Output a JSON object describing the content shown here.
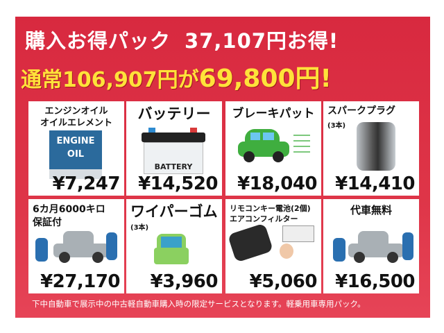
{
  "header": {
    "title": "購入お得パック",
    "savings": "37,107円お得!",
    "regular_prefix": "通常",
    "regular_price": "106,907円が",
    "pack_price": "69,800円!"
  },
  "items": [
    {
      "label": "エンジンオイル\nオイルエレメント",
      "price": "¥7,247",
      "icon": "engine-oil-can-icon",
      "icon_text": "ENGINE OIL"
    },
    {
      "label": "バッテリー",
      "price": "¥14,520",
      "icon": "battery-icon",
      "icon_text": "BATTERY"
    },
    {
      "label": "ブレーキパット",
      "price": "¥18,040",
      "icon": "braking-car-icon"
    },
    {
      "label": "スパークプラグ",
      "note": "(3本)",
      "price": "¥14,410",
      "icon": "engine-icon"
    },
    {
      "label": "6カ月6000キロ\n保証付",
      "price": "¥27,170",
      "icon": "mechanics-car-icon"
    },
    {
      "label": "ワイパーゴム",
      "note": "(3本)",
      "price": "¥3,960",
      "icon": "car-rain-icon"
    },
    {
      "label": "リモコンキー電池(2個)\nエアコンフィルター",
      "price": "¥5,060",
      "icon": "remote-key-aircon-icon"
    },
    {
      "label": "代車無料",
      "price": "¥16,500",
      "icon": "mechanics-car-icon"
    }
  ],
  "footer": "下中自動車で展示中の中古軽自動車購入時の限定サービスとなります。軽乗用車専用パック。",
  "colors": {
    "background": "#d8293f",
    "highlight": "#ffe23a"
  }
}
